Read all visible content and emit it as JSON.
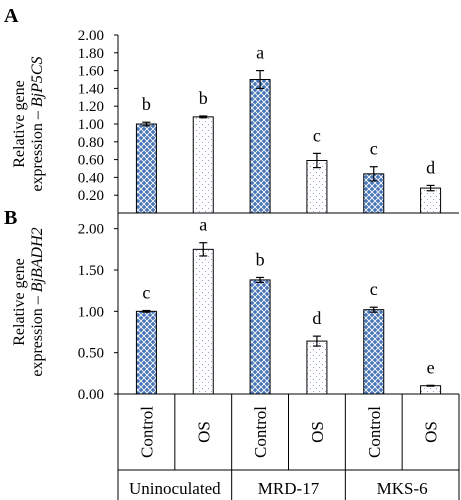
{
  "colors": {
    "control_fill": "#4a76b8",
    "os_fill": "#ffffff",
    "bar_stroke": "#000000",
    "text": "#000000"
  },
  "categories": [
    "Control",
    "OS",
    "Control",
    "OS",
    "Control",
    "OS"
  ],
  "groups": [
    "Uninoculated",
    "MRD-17",
    "MKS-6"
  ],
  "chart_data": [
    {
      "type": "bar",
      "panel_label": "A",
      "ylabel_line1": "Relative gene",
      "ylabel_line2_prefix": "expression –",
      "ylabel_gene": "BjP5CS",
      "ylim": [
        0,
        2.0
      ],
      "yticks": [
        "2.00",
        "1.80",
        "1.60",
        "1.40",
        "1.20",
        "1.00",
        "0.80",
        "0.60",
        "0.40",
        "0.20"
      ],
      "ytick_values": [
        2.0,
        1.8,
        1.6,
        1.4,
        1.2,
        1.0,
        0.8,
        0.6,
        0.4,
        0.2
      ],
      "values": [
        1.0,
        1.08,
        1.5,
        0.59,
        0.44,
        0.28
      ],
      "errors": [
        0.02,
        0.01,
        0.1,
        0.08,
        0.08,
        0.03
      ],
      "letters": [
        "b",
        "b",
        "a",
        "c",
        "c",
        "d"
      ]
    },
    {
      "type": "bar",
      "panel_label": "B",
      "ylabel_line1": "Relative gene",
      "ylabel_line2_prefix": "expression –",
      "ylabel_gene": "BjBADH2",
      "ylim": [
        0,
        2.25
      ],
      "yticks": [
        "2.00",
        "1.50",
        "1.00",
        "0.50",
        "0.00"
      ],
      "ytick_values": [
        2.0,
        1.5,
        1.0,
        0.5,
        0.0
      ],
      "values": [
        1.0,
        1.75,
        1.38,
        0.64,
        1.02,
        0.1
      ],
      "errors": [
        0.01,
        0.08,
        0.03,
        0.06,
        0.03,
        0.005
      ],
      "letters": [
        "c",
        "a",
        "b",
        "d",
        "c",
        "e"
      ]
    }
  ]
}
